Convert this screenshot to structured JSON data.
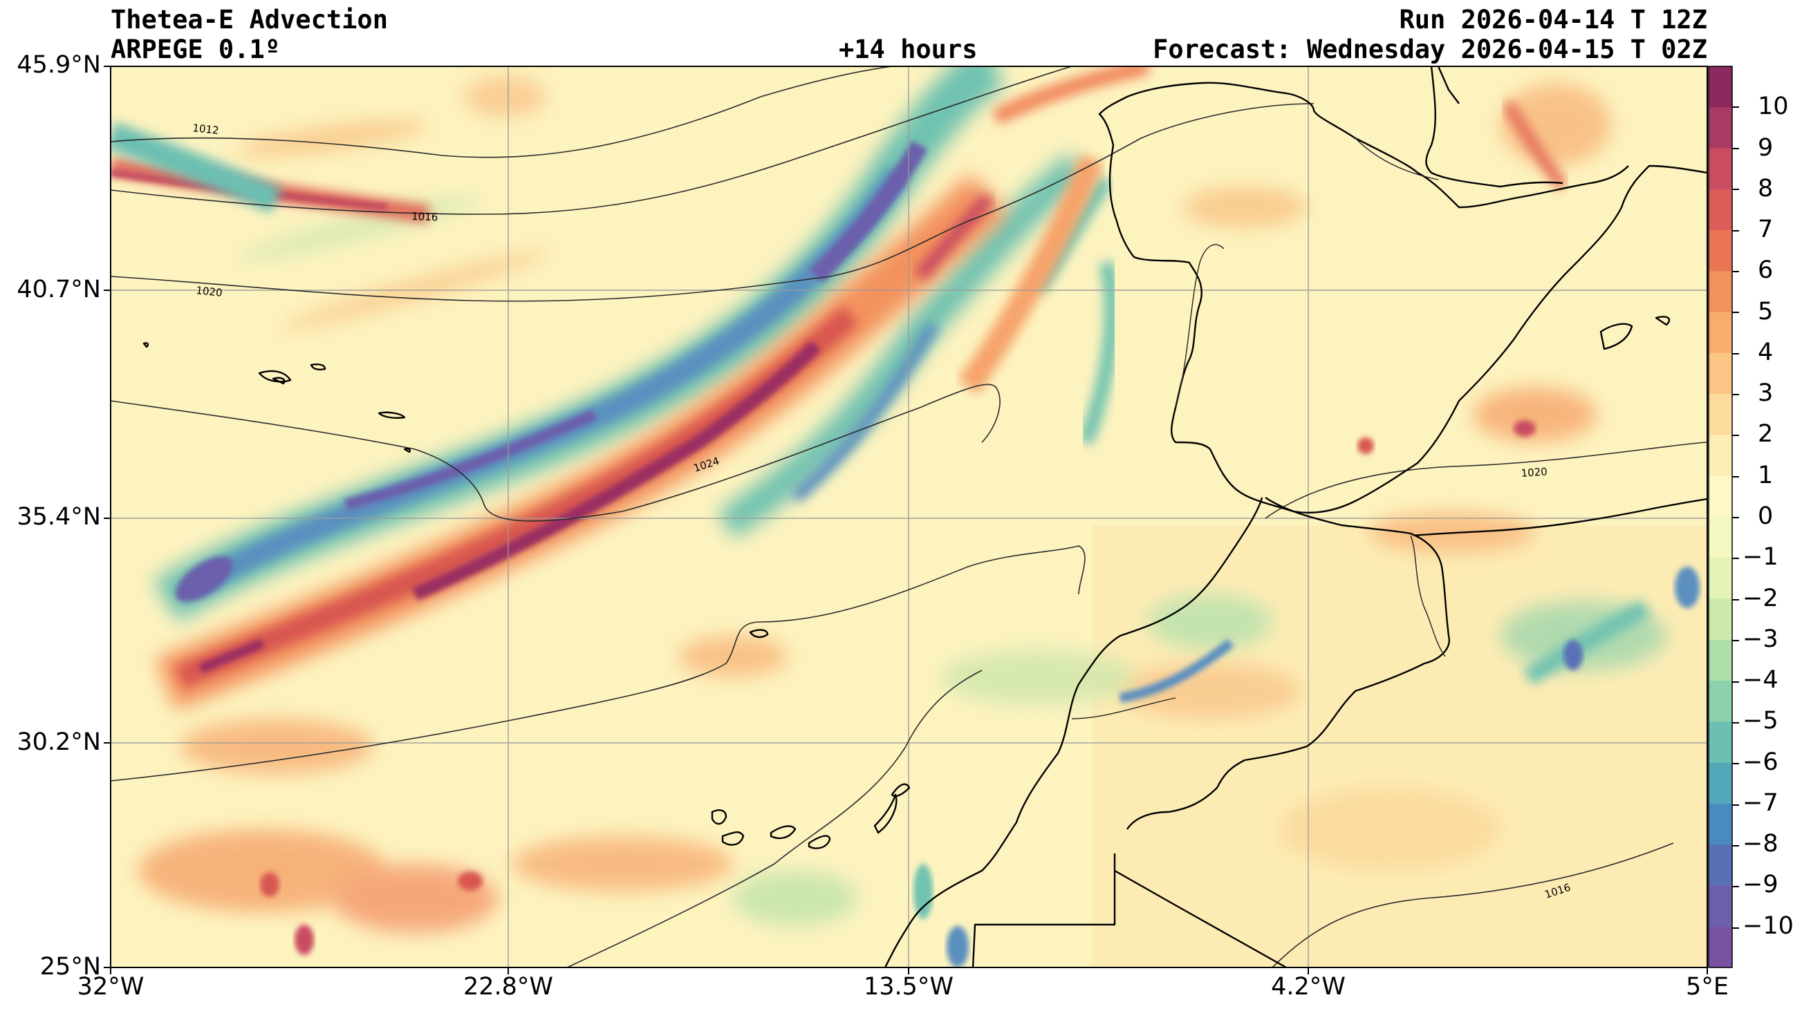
{
  "header": {
    "title": "Thetea-E Advection",
    "model": "ARPEGE 0.1º",
    "lead": "+14 hours",
    "run": "Run 2026-04-14 T 12Z",
    "forecast": "Forecast: Wednesday 2026-04-15 T 02Z"
  },
  "map": {
    "extent": {
      "lon_min": -32,
      "lon_max": 5,
      "lat_min": 25,
      "lat_max": 45.9
    },
    "lat_labels": [
      "45.9°N",
      "40.7°N",
      "35.4°N",
      "30.2°N",
      "25°N"
    ],
    "lon_labels": [
      "32°W",
      "22.8°W",
      "13.5°W",
      "4.2°W",
      "5°E"
    ],
    "isobar_labels": [
      "1012",
      "1016",
      "1020",
      "1024",
      "1020",
      "1016"
    ],
    "colorbar": {
      "ticks": [
        "10",
        "9",
        "8",
        "7",
        "6",
        "5",
        "4",
        "3",
        "2",
        "1",
        "0",
        "−1",
        "−2",
        "−3",
        "−4",
        "−5",
        "−6",
        "−7",
        "−8",
        "−9",
        "−10"
      ],
      "colors": [
        "#8a2a5e",
        "#a83a63",
        "#c94c61",
        "#dd5c59",
        "#eb7656",
        "#f3925d",
        "#f8ad6c",
        "#fbc585",
        "#fcdb9c",
        "#fdeeb5",
        "#fdf8c7",
        "#f5f9c1",
        "#e4f3b6",
        "#cbeaac",
        "#aee0aa",
        "#8dd2ad",
        "#6bc0b2",
        "#52a8b9",
        "#4a8bbf",
        "#5a70b6",
        "#6c60ac",
        "#7a52a4"
      ]
    }
  }
}
